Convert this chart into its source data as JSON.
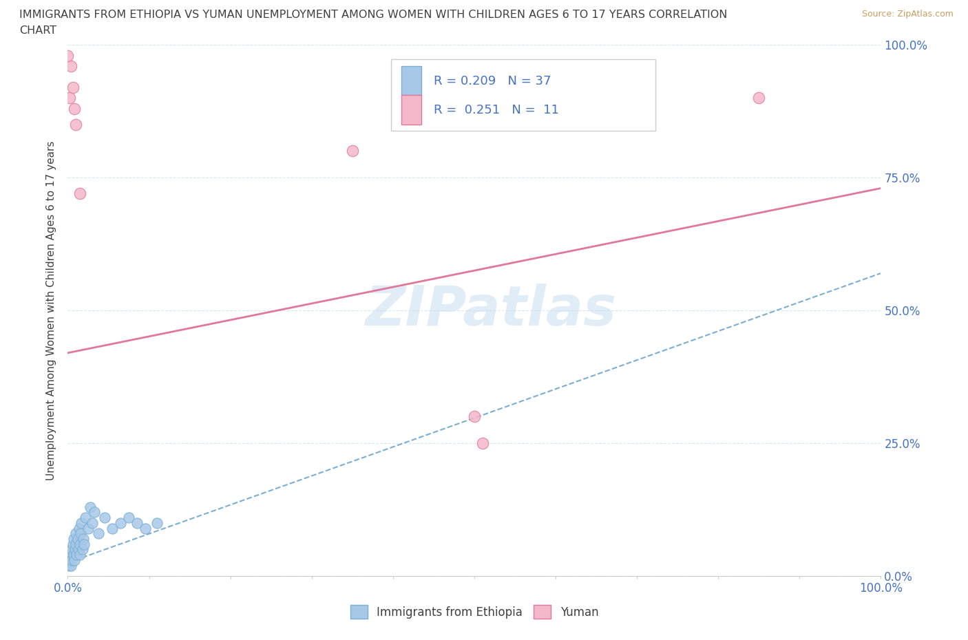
{
  "title_line1": "IMMIGRANTS FROM ETHIOPIA VS YUMAN UNEMPLOYMENT AMONG WOMEN WITH CHILDREN AGES 6 TO 17 YEARS CORRELATION",
  "title_line2": "CHART",
  "source": "Source: ZipAtlas.com",
  "ylabel": "Unemployment Among Women with Children Ages 6 to 17 years",
  "xlim": [
    0,
    1.0
  ],
  "ylim": [
    0,
    1.0
  ],
  "x_ticks": [
    0.0,
    0.1,
    0.2,
    0.3,
    0.4,
    0.5,
    0.6,
    0.7,
    0.8,
    0.9,
    1.0
  ],
  "y_ticks": [
    0.0,
    0.25,
    0.5,
    0.75,
    1.0
  ],
  "y_tick_labels": [
    "0.0%",
    "25.0%",
    "50.0%",
    "75.0%",
    "100.0%"
  ],
  "blue_fill": "#a8c8e8",
  "blue_edge": "#7aaed4",
  "pink_fill": "#f4b8ca",
  "pink_edge": "#e07898",
  "blue_trend_color": "#7aaed4",
  "pink_trend_color": "#e07898",
  "R_blue": 0.209,
  "N_blue": 37,
  "R_pink": 0.251,
  "N_pink": 11,
  "legend_label_blue": "Immigrants from Ethiopia",
  "legend_label_pink": "Yuman",
  "blue_scatter_x": [
    0.001,
    0.002,
    0.003,
    0.004,
    0.005,
    0.005,
    0.006,
    0.007,
    0.007,
    0.008,
    0.009,
    0.01,
    0.01,
    0.011,
    0.012,
    0.013,
    0.014,
    0.015,
    0.015,
    0.016,
    0.017,
    0.018,
    0.019,
    0.02,
    0.022,
    0.025,
    0.028,
    0.03,
    0.033,
    0.038,
    0.045,
    0.055,
    0.065,
    0.075,
    0.085,
    0.095,
    0.11
  ],
  "blue_scatter_y": [
    0.02,
    0.03,
    0.04,
    0.02,
    0.05,
    0.03,
    0.06,
    0.04,
    0.07,
    0.03,
    0.05,
    0.06,
    0.08,
    0.04,
    0.07,
    0.05,
    0.09,
    0.06,
    0.04,
    0.08,
    0.1,
    0.05,
    0.07,
    0.06,
    0.11,
    0.09,
    0.13,
    0.1,
    0.12,
    0.08,
    0.11,
    0.09,
    0.1,
    0.11,
    0.1,
    0.09,
    0.1
  ],
  "pink_scatter_x": [
    0.002,
    0.004,
    0.006,
    0.008,
    0.01,
    0.015,
    0.5,
    0.51,
    0.85,
    0.0,
    0.35
  ],
  "pink_scatter_y": [
    0.9,
    0.96,
    0.92,
    0.88,
    0.85,
    0.72,
    0.3,
    0.25,
    0.9,
    0.98,
    0.8
  ],
  "pink_line_x0": 0.0,
  "pink_line_y0": 0.42,
  "pink_line_x1": 1.0,
  "pink_line_y1": 0.73,
  "blue_line_x0": 0.0,
  "blue_line_y0": 0.025,
  "blue_line_x1": 1.0,
  "blue_line_y1": 0.57,
  "watermark": "ZIPatlas",
  "background_color": "#ffffff",
  "grid_color": "#d8e8f0",
  "title_color": "#404040",
  "tick_color": "#4472c4",
  "source_color": "#c8a060",
  "legend_text_color": "#4472c4"
}
